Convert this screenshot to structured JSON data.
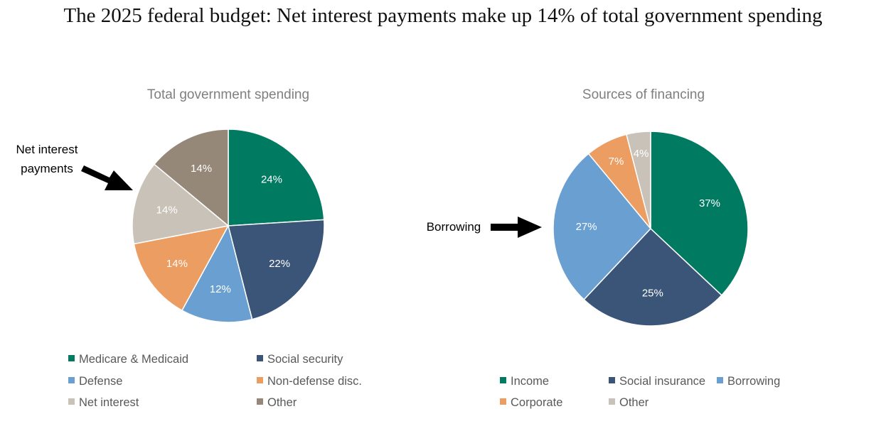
{
  "title": "The 2025 federal budget: Net interest payments make up 14% of total government spending",
  "chart_data": [
    {
      "type": "pie",
      "title": "Total government spending",
      "slices": [
        {
          "label": "Medicare & Medicaid",
          "value": 24,
          "display": "24%",
          "color": "#007A61"
        },
        {
          "label": "Social security",
          "value": 22,
          "display": "22%",
          "color": "#3A5578"
        },
        {
          "label": "Defense",
          "value": 12,
          "display": "12%",
          "color": "#6A9FD1"
        },
        {
          "label": "Non-defense disc.",
          "value": 14,
          "display": "14%",
          "color": "#EC9E62"
        },
        {
          "label": "Net interest",
          "value": 14,
          "display": "14%",
          "color": "#C9C2B8"
        },
        {
          "label": "Other",
          "value": 14,
          "display": "14%",
          "color": "#958879"
        }
      ],
      "legend": [
        "Medicare & Medicaid",
        "Social security",
        "Defense",
        "Non-defense disc.",
        "Net interest",
        "Other"
      ],
      "legend_position": "bottom",
      "annotation": {
        "lines": [
          "Net interest",
          "payments"
        ],
        "target": "Net interest"
      }
    },
    {
      "type": "pie",
      "title": "Sources of financing",
      "slices": [
        {
          "label": "Income",
          "value": 37,
          "display": "37%",
          "color": "#007A61"
        },
        {
          "label": "Social insurance",
          "value": 25,
          "display": "25%",
          "color": "#3A5578"
        },
        {
          "label": "Borrowing",
          "value": 27,
          "display": "27%",
          "color": "#6A9FD1"
        },
        {
          "label": "Corporate",
          "value": 7,
          "display": "7%",
          "color": "#EC9E62"
        },
        {
          "label": "Other",
          "value": 4,
          "display": "4%",
          "color": "#C9C2B8"
        }
      ],
      "legend": [
        "Income",
        "Social insurance",
        "Borrowing",
        "Corporate",
        "Other"
      ],
      "legend_position": "bottom",
      "annotation": {
        "lines": [
          "Borrowing"
        ],
        "target": "Borrowing"
      }
    }
  ]
}
